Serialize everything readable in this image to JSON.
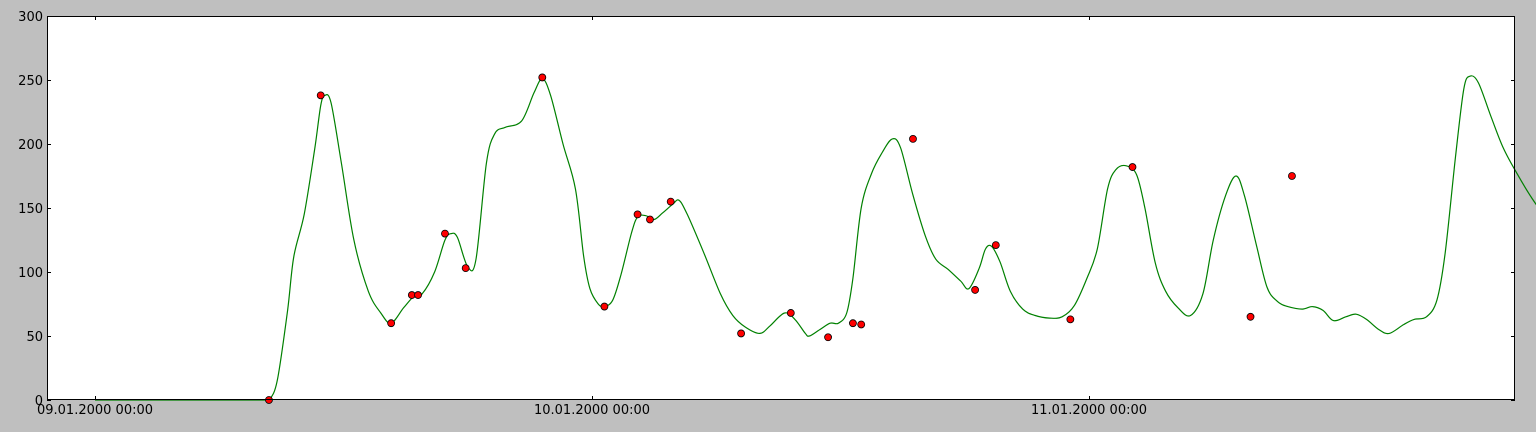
{
  "chart_data": {
    "type": "line",
    "title": "",
    "xlabel": "",
    "ylabel": "",
    "x_unit": "hours since 09.01.2000 00:00",
    "xlim": [
      0,
      71.1
    ],
    "ylim": [
      0,
      300
    ],
    "grid": false,
    "y_ticks": [
      0,
      50,
      100,
      150,
      200,
      250,
      300
    ],
    "x_ticks": [
      {
        "value": 0,
        "label": "09.01.2000 00:00"
      },
      {
        "value": 24,
        "label": "10.01.2000 00:00"
      },
      {
        "value": 48,
        "label": "11.01.2000 00:00"
      }
    ],
    "line_color": "#008000",
    "marker_color": "#ff0000",
    "curve": [
      [
        0,
        0
      ],
      [
        7.4,
        0
      ],
      [
        8.1,
        0
      ],
      [
        8.4,
        0
      ],
      [
        8.8,
        15
      ],
      [
        9.3,
        70
      ],
      [
        9.6,
        112
      ],
      [
        10.1,
        145
      ],
      [
        10.6,
        195
      ],
      [
        10.9,
        230
      ],
      [
        11.1,
        238
      ],
      [
        11.4,
        232
      ],
      [
        11.9,
        185
      ],
      [
        12.5,
        125
      ],
      [
        13.2,
        85
      ],
      [
        13.8,
        68
      ],
      [
        14.3,
        60
      ],
      [
        14.9,
        72
      ],
      [
        15.4,
        81
      ],
      [
        15.8,
        83
      ],
      [
        16.4,
        100
      ],
      [
        16.9,
        125
      ],
      [
        17.2,
        130
      ],
      [
        17.5,
        127
      ],
      [
        18.0,
        104
      ],
      [
        18.4,
        110
      ],
      [
        18.9,
        185
      ],
      [
        19.3,
        208
      ],
      [
        19.8,
        213
      ],
      [
        20.6,
        218
      ],
      [
        21.2,
        240
      ],
      [
        21.6,
        251
      ],
      [
        22.0,
        238
      ],
      [
        22.6,
        200
      ],
      [
        23.2,
        165
      ],
      [
        23.6,
        112
      ],
      [
        23.9,
        87
      ],
      [
        24.3,
        75
      ],
      [
        24.6,
        73
      ],
      [
        25.0,
        78
      ],
      [
        25.4,
        98
      ],
      [
        25.9,
        130
      ],
      [
        26.2,
        143
      ],
      [
        26.6,
        144
      ],
      [
        27.0,
        141
      ],
      [
        27.4,
        146
      ],
      [
        27.9,
        153
      ],
      [
        28.2,
        156
      ],
      [
        28.6,
        145
      ],
      [
        29.4,
        115
      ],
      [
        30.2,
        83
      ],
      [
        30.8,
        66
      ],
      [
        31.4,
        57
      ],
      [
        32.1,
        52
      ],
      [
        32.6,
        58
      ],
      [
        33.3,
        68
      ],
      [
        33.8,
        63
      ],
      [
        34.3,
        52
      ],
      [
        34.5,
        50
      ],
      [
        35.0,
        55
      ],
      [
        35.5,
        60
      ],
      [
        35.9,
        60
      ],
      [
        36.3,
        68
      ],
      [
        36.6,
        95
      ],
      [
        37.0,
        150
      ],
      [
        37.5,
        177
      ],
      [
        38.0,
        193
      ],
      [
        38.5,
        204
      ],
      [
        38.9,
        197
      ],
      [
        39.5,
        160
      ],
      [
        40.1,
        128
      ],
      [
        40.6,
        110
      ],
      [
        41.2,
        102
      ],
      [
        41.8,
        93
      ],
      [
        42.2,
        87
      ],
      [
        42.7,
        103
      ],
      [
        43.0,
        118
      ],
      [
        43.3,
        120
      ],
      [
        43.7,
        108
      ],
      [
        44.2,
        85
      ],
      [
        44.8,
        71
      ],
      [
        45.4,
        66
      ],
      [
        46.1,
        64
      ],
      [
        46.7,
        65
      ],
      [
        47.3,
        74
      ],
      [
        47.9,
        95
      ],
      [
        48.4,
        118
      ],
      [
        48.9,
        165
      ],
      [
        49.3,
        180
      ],
      [
        49.8,
        183
      ],
      [
        50.3,
        176
      ],
      [
        50.7,
        150
      ],
      [
        51.2,
        107
      ],
      [
        51.7,
        85
      ],
      [
        52.3,
        72
      ],
      [
        52.9,
        66
      ],
      [
        53.5,
        83
      ],
      [
        54.0,
        125
      ],
      [
        54.6,
        160
      ],
      [
        55.1,
        175
      ],
      [
        55.5,
        160
      ],
      [
        56.1,
        120
      ],
      [
        56.6,
        88
      ],
      [
        57.1,
        77
      ],
      [
        57.6,
        73
      ],
      [
        58.3,
        71
      ],
      [
        58.8,
        73
      ],
      [
        59.3,
        70
      ],
      [
        59.8,
        62
      ],
      [
        60.4,
        65
      ],
      [
        60.9,
        67
      ],
      [
        61.4,
        63
      ],
      [
        62.0,
        55
      ],
      [
        62.5,
        52
      ],
      [
        63.2,
        59
      ],
      [
        63.7,
        63
      ],
      [
        64.3,
        65
      ],
      [
        64.8,
        78
      ],
      [
        65.2,
        115
      ],
      [
        65.7,
        190
      ],
      [
        66.1,
        243
      ],
      [
        66.4,
        253
      ],
      [
        66.8,
        248
      ],
      [
        67.4,
        222
      ],
      [
        68.0,
        197
      ],
      [
        68.7,
        176
      ],
      [
        69.5,
        155
      ],
      [
        70.0,
        145
      ],
      [
        70.4,
        143
      ],
      [
        70.8,
        160
      ],
      [
        71.0,
        175
      ],
      [
        71.1,
        178
      ]
    ],
    "markers": [
      [
        8.4,
        0
      ],
      [
        10.9,
        238
      ],
      [
        14.3,
        60
      ],
      [
        15.3,
        82
      ],
      [
        15.6,
        82
      ],
      [
        16.9,
        130
      ],
      [
        17.9,
        103
      ],
      [
        21.6,
        252
      ],
      [
        24.6,
        73
      ],
      [
        26.2,
        145
      ],
      [
        26.8,
        141
      ],
      [
        27.8,
        155
      ],
      [
        31.2,
        52
      ],
      [
        33.6,
        68
      ],
      [
        35.4,
        49
      ],
      [
        36.6,
        60
      ],
      [
        37.0,
        59
      ],
      [
        39.5,
        204
      ],
      [
        42.5,
        86
      ],
      [
        43.5,
        121
      ],
      [
        47.1,
        63
      ],
      [
        50.1,
        182
      ],
      [
        55.8,
        65
      ],
      [
        57.8,
        175
      ]
    ]
  }
}
